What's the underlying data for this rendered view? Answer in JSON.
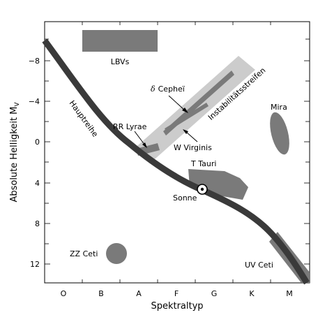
{
  "diagram": {
    "x_axis_label": "Spektraltyp",
    "y_axis_label_main": "Absolute Helligkeit M",
    "y_axis_label_sub": "V",
    "x_ticks": [
      "O",
      "B",
      "A",
      "F",
      "G",
      "K",
      "M"
    ],
    "y_ticks": [
      "−8",
      "−4",
      "0",
      "4",
      "8",
      "12"
    ],
    "regions": {
      "lbvs": "LBVs",
      "instability_strip": "Instabilitätsstreifen",
      "delta_cephei_symbol": "δ",
      "delta_cephei": "Cepheï",
      "rr_lyrae": "RR Lyrae",
      "w_virginis": "W Virginis",
      "mira": "Mira",
      "t_tauri": "T Tauri",
      "main_sequence": "Hauptreihe",
      "sun": "Sonne",
      "zz_ceti": "ZZ Ceti",
      "uv_ceti": "UV Ceti"
    },
    "colors": {
      "main_sequence": "#3a3a3a",
      "region_fill": "#7a7a7a",
      "strip_fill": "#cccccc"
    }
  }
}
